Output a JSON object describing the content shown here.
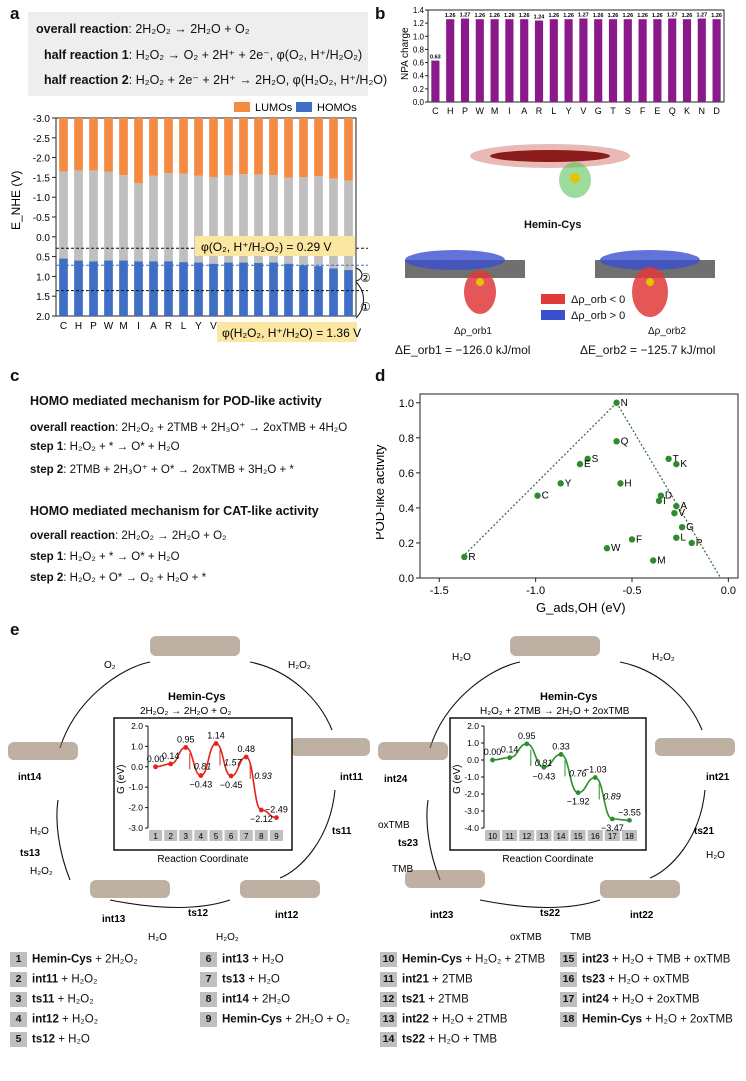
{
  "panel_a": {
    "label": "a",
    "overall_label": "overall reaction",
    "overall_eq": ": 2H₂O₂ → 2H₂O + O₂",
    "half1_label": "half reaction 1",
    "half1_eq": ": H₂O₂ → O₂ + 2H⁺ + 2e⁻, φ(O₂, H⁺/H₂O₂)",
    "half2_label": "half reaction 2",
    "half2_eq": ": H₂O₂ + 2e⁻ + 2H⁺ → 2H₂O, φ(H₂O₂, H⁺/H₂O)",
    "legend_lumo": "LUMOs",
    "legend_homo": "HOMOs",
    "color_lumo": "#f58a42",
    "color_homo": "#3f6fc4",
    "color_gap": "#bfbfbf",
    "phi1_label": "φ(O₂, H⁺/H₂O₂) = 0.29 V",
    "phi2_label": "φ(H₂O₂, H⁺/H₂O) = 1.36 V",
    "marker1": "①",
    "marker2": "②"
  },
  "chart_data": [
    {
      "type": "bar",
      "title": "",
      "ylabel": "E_NHE (V)",
      "xlabel": "",
      "ylim": [
        -3.0,
        2.0
      ],
      "y_inverted": true,
      "yticks": [
        "-3.0",
        "-2.5",
        "-2.0",
        "-1.5",
        "-1.0",
        "-0.5",
        "0.0",
        "0.5",
        "1.0",
        "1.5",
        "2.0"
      ],
      "categories": [
        "C",
        "H",
        "P",
        "W",
        "M",
        "I",
        "A",
        "R",
        "L",
        "Y",
        "V",
        "G",
        "T",
        "S",
        "F",
        "E",
        "Q",
        "K",
        "N",
        "D"
      ],
      "series": [
        {
          "name": "LUMOs",
          "values": [
            -2.25,
            -2.27,
            -2.27,
            -2.24,
            -2.16,
            -1.95,
            -2.14,
            -2.21,
            -2.19,
            -2.14,
            -2.11,
            -2.15,
            -2.18,
            -2.17,
            -2.16,
            -2.09,
            -2.11,
            -2.13,
            -2.07,
            -2.02
          ]
        },
        {
          "name": "HOMOs",
          "values": [
            0.55,
            0.6,
            0.62,
            0.6,
            0.6,
            0.62,
            0.62,
            0.62,
            0.64,
            0.65,
            0.68,
            0.65,
            0.65,
            0.66,
            0.65,
            0.68,
            0.72,
            0.74,
            0.8,
            0.84
          ]
        }
      ],
      "reference_lines": [
        0.29,
        1.36
      ]
    },
    {
      "type": "bar",
      "title": "",
      "ylabel": "NPA charge",
      "xlabel": "",
      "ylim": [
        0.0,
        1.4
      ],
      "yticks": [
        "0.0",
        "0.2",
        "0.4",
        "0.6",
        "0.8",
        "1.0",
        "1.2",
        "1.4"
      ],
      "categories": [
        "C",
        "H",
        "P",
        "W",
        "M",
        "I",
        "A",
        "R",
        "L",
        "Y",
        "V",
        "G",
        "T",
        "S",
        "F",
        "E",
        "Q",
        "K",
        "N",
        "D"
      ],
      "values": [
        0.63,
        1.26,
        1.27,
        1.26,
        1.26,
        1.26,
        1.26,
        1.24,
        1.26,
        1.26,
        1.27,
        1.26,
        1.26,
        1.26,
        1.26,
        1.26,
        1.27,
        1.26,
        1.27,
        1.26
      ],
      "value_labels": [
        "0.63",
        "1.26",
        "1.27",
        "1.26",
        "1.26",
        "1.26",
        "1.26",
        "1.24",
        "1.26",
        "1.26",
        "1.27",
        "1.26",
        "1.26",
        "1.26",
        "1.26",
        "1.26",
        "1.27",
        "1.26",
        "1.27",
        "1.26"
      ],
      "bar_color": "#8a1a8a"
    },
    {
      "type": "scatter",
      "title": "",
      "xlabel": "G_ads,OH (eV)",
      "ylabel": "POD-like activity",
      "xlim": [
        -1.6,
        0.05
      ],
      "ylim": [
        0.0,
        1.05
      ],
      "xticks": [
        "-1.5",
        "-1.0",
        "-0.5",
        "0.0"
      ],
      "yticks": [
        "0.0",
        "0.2",
        "0.4",
        "0.6",
        "0.8",
        "1.0"
      ],
      "points": [
        {
          "label": "N",
          "x": -0.58,
          "y": 1.0
        },
        {
          "label": "Q",
          "x": -0.58,
          "y": 0.78
        },
        {
          "label": "T",
          "x": -0.31,
          "y": 0.68
        },
        {
          "label": "K",
          "x": -0.27,
          "y": 0.65
        },
        {
          "label": "S",
          "x": -0.73,
          "y": 0.68
        },
        {
          "label": "E",
          "x": -0.77,
          "y": 0.65
        },
        {
          "label": "Y",
          "x": -0.87,
          "y": 0.54
        },
        {
          "label": "H",
          "x": -0.56,
          "y": 0.54
        },
        {
          "label": "C",
          "x": -0.99,
          "y": 0.47
        },
        {
          "label": "D",
          "x": -0.35,
          "y": 0.47
        },
        {
          "label": "I",
          "x": -0.36,
          "y": 0.44
        },
        {
          "label": "A",
          "x": -0.27,
          "y": 0.41
        },
        {
          "label": "V",
          "x": -0.28,
          "y": 0.37
        },
        {
          "label": "G",
          "x": -0.24,
          "y": 0.29
        },
        {
          "label": "L",
          "x": -0.27,
          "y": 0.23
        },
        {
          "label": "P",
          "x": -0.19,
          "y": 0.2
        },
        {
          "label": "F",
          "x": -0.5,
          "y": 0.22
        },
        {
          "label": "W",
          "x": -0.63,
          "y": 0.17
        },
        {
          "label": "M",
          "x": -0.39,
          "y": 0.1
        },
        {
          "label": "R",
          "x": -1.37,
          "y": 0.12
        }
      ],
      "trend_lines": [
        [
          [
            -1.38,
            0.12
          ],
          [
            -0.58,
            1.0
          ]
        ],
        [
          [
            -0.58,
            1.0
          ],
          [
            -0.04,
            0.0
          ]
        ]
      ],
      "point_color": "#2e8b2e"
    },
    {
      "type": "line",
      "title": "",
      "xlabel": "Reaction Coordinate",
      "ylabel": "G (eV)",
      "ylim": [
        -3.0,
        2.0
      ],
      "yticks": [
        "2.0",
        "1.0",
        "0.0",
        "-1.0",
        "-2.0",
        "-3.0"
      ],
      "categories": [
        "1",
        "2",
        "3",
        "4",
        "5",
        "6",
        "7",
        "8",
        "9"
      ],
      "values": [
        0.0,
        0.14,
        0.95,
        -0.43,
        1.14,
        -0.45,
        0.48,
        -2.12,
        -2.49
      ],
      "value_labels": [
        "0.00",
        "0.14",
        "0.95",
        "−0.43",
        "1.14",
        "−0.45",
        "0.48",
        "−2.12",
        "−2.49"
      ],
      "barriers": [
        "0.81",
        "1.57",
        "0.93"
      ],
      "color": "#e3241b"
    },
    {
      "type": "line",
      "title": "",
      "xlabel": "Reaction Coordinate",
      "ylabel": "G (eV)",
      "ylim": [
        -4.0,
        2.0
      ],
      "yticks": [
        "2.0",
        "1.0",
        "0.0",
        "-1.0",
        "-2.0",
        "-3.0",
        "-4.0"
      ],
      "categories": [
        "10",
        "11",
        "12",
        "13",
        "14",
        "15",
        "16",
        "17",
        "18"
      ],
      "values": [
        0.0,
        0.14,
        0.95,
        -0.43,
        0.33,
        -1.92,
        -1.03,
        -3.47,
        -3.55
      ],
      "value_labels": [
        "0.00",
        "0.14",
        "0.95",
        "−0.43",
        "0.33",
        "−1.92",
        "−1.03",
        "−3.47",
        "−3.55"
      ],
      "barriers": [
        "0.81",
        "0.76",
        "0.89"
      ],
      "color": "#2a8f2a"
    }
  ],
  "panel_b": {
    "label": "b",
    "molecule_label": "Hemin-Cys",
    "legend_neg": "Δρ_orb < 0",
    "legend_pos": "Δρ_orb > 0",
    "rho1": "Δρ_orb1",
    "rho2": "Δρ_orb2",
    "e1": "ΔE_orb1 = −126.0 kJ/mol",
    "e2": "ΔE_orb2 = −125.7 kJ/mol",
    "color_neg": "#e03a3a",
    "color_pos": "#3a4fd0"
  },
  "panel_c": {
    "label": "c",
    "pod_heading": "HOMO mediated mechanism for POD-like activity",
    "pod_overall_label": "overall reaction",
    "pod_overall": ": 2H₂O₂ + 2TMB + 2H₃O⁺ → 2oxTMB + 4H₂O",
    "pod_step1_label": "step 1",
    "pod_step1": ": H₂O₂ + * → O* + H₂O",
    "pod_step2_label": "step 2",
    "pod_step2": ": 2TMB + 2H₃O⁺ + O* → 2oxTMB + 3H₂O + *",
    "cat_heading": "HOMO mediated mechanism for CAT-like activity",
    "cat_overall_label": "overall reaction",
    "cat_overall": ": 2H₂O₂ → 2H₂O + O₂",
    "cat_step1_label": "step 1",
    "cat_step1": ": H₂O₂ + * → O* + H₂O",
    "cat_step2_label": "step 2",
    "cat_step2": ": H₂O₂ + O* → O₂ + H₂O + *"
  },
  "panel_d": {
    "label": "d"
  },
  "panel_e": {
    "label": "e",
    "left": {
      "center_title": "Hemin-Cys",
      "center_eq": "2H₂O₂ → 2H₂O + O₂",
      "o2": "O₂",
      "h2o2_top": "H₂O₂",
      "int11": "int11",
      "ts11": "ts11",
      "int12": "int12",
      "ts12": "ts12",
      "h2o2_bottom": "H₂O₂",
      "h2o_bottom": "H₂O",
      "int13": "int13",
      "ts13": "ts13",
      "h2o_left": "H₂O",
      "h2o2_left": "H₂O₂",
      "int14": "int14",
      "axis_x": "Reaction Coordinate",
      "axis_y": "G (eV)"
    },
    "right": {
      "center_title": "Hemin-Cys",
      "center_eq": "H₂O₂ + 2TMB → 2H₂O + 2oxTMB",
      "h2o_top": "H₂O",
      "h2o2_top": "H₂O₂",
      "int21": "int21",
      "ts21": "ts21",
      "h2o_right": "H₂O",
      "int22": "int22",
      "ts22": "ts22",
      "oxtmb_bottom": "oxTMB",
      "tmb_bottom": "TMB",
      "int23": "int23",
      "ts23": "ts23",
      "oxtmb_left": "oxTMB",
      "tmb_left": "TMB",
      "int24": "int24",
      "axis_x": "Reaction Coordinate",
      "axis_y": "G (eV)"
    },
    "legend": [
      {
        "n": "1",
        "bold": "Hemin-Cys",
        "rest": " + 2H₂O₂"
      },
      {
        "n": "2",
        "bold": "int11",
        "rest": " + H₂O₂"
      },
      {
        "n": "3",
        "bold": "ts11",
        "rest": " + H₂O₂"
      },
      {
        "n": "4",
        "bold": "int12",
        "rest": " + H₂O₂"
      },
      {
        "n": "5",
        "bold": "ts12",
        "rest": " + H₂O"
      },
      {
        "n": "6",
        "bold": "int13",
        "rest": " + H₂O"
      },
      {
        "n": "7",
        "bold": "ts13",
        "rest": " + H₂O"
      },
      {
        "n": "8",
        "bold": "int14",
        "rest": " + 2H₂O"
      },
      {
        "n": "9",
        "bold": "Hemin-Cys",
        "rest": " + 2H₂O + O₂"
      },
      {
        "n": "10",
        "bold": "Hemin-Cys",
        "rest": " + H₂O₂ + 2TMB"
      },
      {
        "n": "11",
        "bold": "int21",
        "rest": " + 2TMB"
      },
      {
        "n": "12",
        "bold": "ts21",
        "rest": " + 2TMB"
      },
      {
        "n": "13",
        "bold": "int22",
        "rest": " + H₂O + 2TMB"
      },
      {
        "n": "14",
        "bold": "ts22",
        "rest": " + H₂O + TMB"
      },
      {
        "n": "15",
        "bold": "int23",
        "rest": " + H₂O + TMB + oxTMB"
      },
      {
        "n": "16",
        "bold": "ts23",
        "rest": " + H₂O + oxTMB"
      },
      {
        "n": "17",
        "bold": "int24",
        "rest": " + H₂O + 2oxTMB"
      },
      {
        "n": "18",
        "bold": "Hemin-Cys",
        "rest": " + H₂O + 2oxTMB"
      }
    ]
  }
}
